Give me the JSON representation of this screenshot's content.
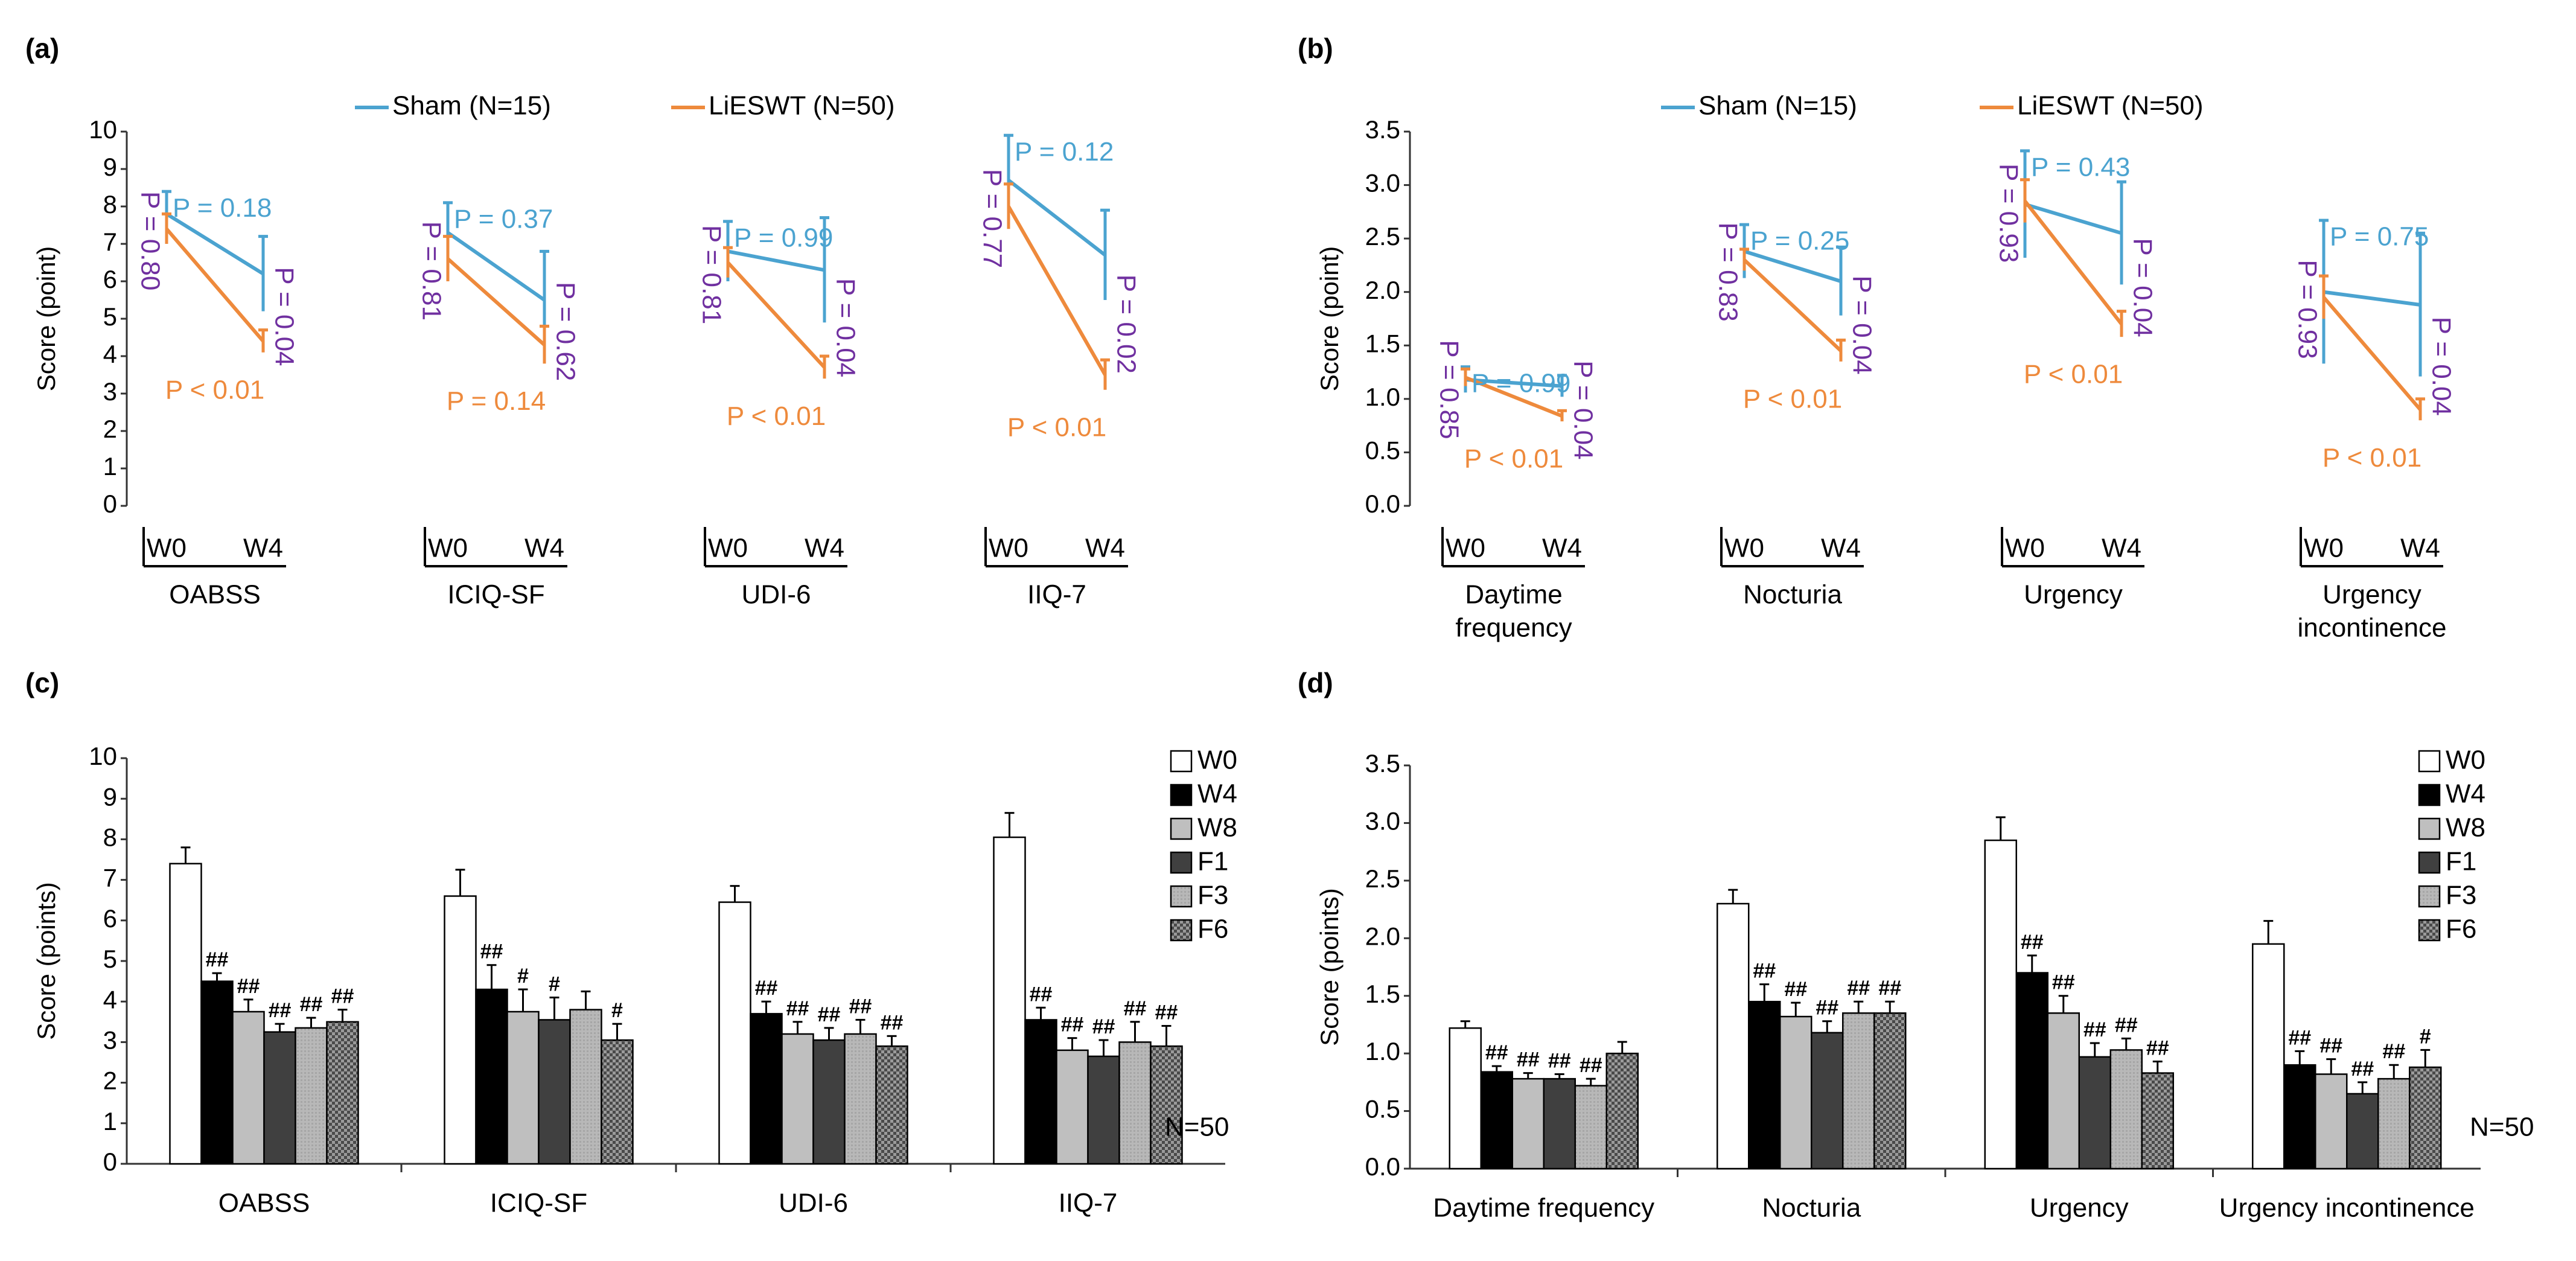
{
  "colors": {
    "sham": "#4BA3D0",
    "lieswt": "#EE8A3C",
    "pval": "#7030A0",
    "axis": "#333333",
    "grid": "#d9d9d9"
  },
  "legend_line": {
    "sham": "Sham (N=15)",
    "lieswt": "LiESWT (N=50)"
  },
  "legend_bar": [
    "W0",
    "W4",
    "W8",
    "F1",
    "F3",
    "F6"
  ],
  "n_label": "N=50",
  "chart_data": [
    {
      "panel": "(a)",
      "type": "line",
      "ylabel": "Score (point)",
      "ylim": [
        0,
        10
      ],
      "yticks": [
        "0",
        "1",
        "2",
        "3",
        "4",
        "5",
        "6",
        "7",
        "8",
        "9",
        "10"
      ],
      "time_labels": [
        "W0",
        "W4"
      ],
      "groups": [
        {
          "name": "OABSS",
          "sham": [
            7.8,
            6.2
          ],
          "sham_err": [
            0.6,
            1.0
          ],
          "lieswt": [
            7.4,
            4.4
          ],
          "lieswt_err": [
            0.4,
            0.3
          ],
          "p_sham": "P = 0.18",
          "p_lieswt": "P < 0.01",
          "p_w0": "P = 0.80",
          "p_w4": "P = 0.04"
        },
        {
          "name": "ICIQ-SF",
          "sham": [
            7.3,
            5.5
          ],
          "sham_err": [
            0.8,
            1.3
          ],
          "lieswt": [
            6.6,
            4.3
          ],
          "lieswt_err": [
            0.6,
            0.5
          ],
          "p_sham": "P = 0.37",
          "p_lieswt": "P = 0.14",
          "p_w0": "P = 0.81",
          "p_w4": "P = 0.62"
        },
        {
          "name": "UDI-6",
          "sham": [
            6.8,
            6.3
          ],
          "sham_err": [
            0.8,
            1.4
          ],
          "lieswt": [
            6.5,
            3.7
          ],
          "lieswt_err": [
            0.4,
            0.3
          ],
          "p_sham": "P = 0.99",
          "p_lieswt": "P < 0.01",
          "p_w0": "P = 0.81",
          "p_w4": "P = 0.04"
        },
        {
          "name": "IIQ-7",
          "sham": [
            8.7,
            6.7
          ],
          "sham_err": [
            1.2,
            1.2
          ],
          "lieswt": [
            8.0,
            3.5
          ],
          "lieswt_err": [
            0.6,
            0.4
          ],
          "p_sham": "P = 0.12",
          "p_lieswt": "P < 0.01",
          "p_w0": "P = 0.77",
          "p_w4": "P = 0.02"
        }
      ]
    },
    {
      "panel": "(b)",
      "type": "line",
      "ylabel": "Score (point)",
      "ylim": [
        0,
        3.5
      ],
      "yticks": [
        "0.0",
        "0.5",
        "1.0",
        "1.5",
        "2.0",
        "2.5",
        "3.0",
        "3.5"
      ],
      "time_labels": [
        "W0",
        "W4"
      ],
      "groups": [
        {
          "name": "Daytime frequency",
          "sham": [
            1.18,
            1.12
          ],
          "sham_err": [
            0.12,
            0.1
          ],
          "lieswt": [
            1.2,
            0.84
          ],
          "lieswt_err": [
            0.08,
            0.05
          ],
          "p_sham": "P = 0.99",
          "p_lieswt": "P < 0.01",
          "p_w0": "P = 0.85",
          "p_w4": "P = 0.04"
        },
        {
          "name": "Nocturia",
          "sham": [
            2.38,
            2.1
          ],
          "sham_err": [
            0.25,
            0.32
          ],
          "lieswt": [
            2.3,
            1.45
          ],
          "lieswt_err": [
            0.1,
            0.1
          ],
          "p_sham": "P = 0.25",
          "p_lieswt": "P < 0.01",
          "p_w0": "P = 0.83",
          "p_w4": "P = 0.04"
        },
        {
          "name": "Urgency",
          "sham": [
            2.82,
            2.55
          ],
          "sham_err": [
            0.5,
            0.48
          ],
          "lieswt": [
            2.85,
            1.7
          ],
          "lieswt_err": [
            0.2,
            0.12
          ],
          "p_sham": "P = 0.43",
          "p_lieswt": "P < 0.01",
          "p_w0": "P = 0.93",
          "p_w4": "P = 0.04"
        },
        {
          "name": "Urgency incontinence",
          "sham": [
            2.0,
            1.88
          ],
          "sham_err": [
            0.67,
            0.67
          ],
          "lieswt": [
            1.95,
            0.9
          ],
          "lieswt_err": [
            0.2,
            0.1
          ],
          "p_sham": "P = 0.75",
          "p_lieswt": "P < 0.01",
          "p_w0": "P = 0.93",
          "p_w4": "P = 0.04"
        }
      ]
    },
    {
      "panel": "(c)",
      "type": "bar",
      "ylabel": "Score (points)",
      "ylim": [
        0,
        10
      ],
      "yticks": [
        "0",
        "1",
        "2",
        "3",
        "4",
        "5",
        "6",
        "7",
        "8",
        "9",
        "10"
      ],
      "series_names": [
        "W0",
        "W4",
        "W8",
        "F1",
        "F3",
        "F6"
      ],
      "groups": [
        {
          "name": "OABSS",
          "values": [
            7.4,
            4.5,
            3.75,
            3.25,
            3.35,
            3.5
          ],
          "err": [
            0.4,
            0.2,
            0.3,
            0.2,
            0.25,
            0.3
          ],
          "marks": [
            "",
            "##",
            "##",
            "##",
            "##",
            "##"
          ]
        },
        {
          "name": "ICIQ-SF",
          "values": [
            6.6,
            4.3,
            3.75,
            3.55,
            3.8,
            3.05
          ],
          "err": [
            0.65,
            0.6,
            0.55,
            0.55,
            0.45,
            0.4
          ],
          "marks": [
            "",
            "##",
            "#",
            "#",
            "",
            "#"
          ]
        },
        {
          "name": "UDI-6",
          "values": [
            6.45,
            3.7,
            3.2,
            3.05,
            3.2,
            2.9
          ],
          "err": [
            0.4,
            0.3,
            0.3,
            0.3,
            0.35,
            0.25
          ],
          "marks": [
            "",
            "##",
            "##",
            "##",
            "##",
            "##"
          ]
        },
        {
          "name": "IIQ-7",
          "values": [
            8.05,
            3.55,
            2.8,
            2.65,
            3.0,
            2.9
          ],
          "err": [
            0.6,
            0.3,
            0.3,
            0.4,
            0.5,
            0.5
          ],
          "marks": [
            "",
            "##",
            "##",
            "##",
            "##",
            "##"
          ]
        }
      ]
    },
    {
      "panel": "(d)",
      "type": "bar",
      "ylabel": "Score (points)",
      "ylim": [
        0,
        3.5
      ],
      "yticks": [
        "0.0",
        "0.5",
        "1.0",
        "1.5",
        "2.0",
        "2.5",
        "3.0",
        "3.5"
      ],
      "series_names": [
        "W0",
        "W4",
        "W8",
        "F1",
        "F3",
        "F6"
      ],
      "groups": [
        {
          "name": "Daytime frequency",
          "values": [
            1.22,
            0.84,
            0.78,
            0.78,
            0.72,
            1.0
          ],
          "err": [
            0.06,
            0.05,
            0.05,
            0.04,
            0.06,
            0.1
          ],
          "marks": [
            "",
            "##",
            "##",
            "##",
            "##",
            ""
          ]
        },
        {
          "name": "Nocturia",
          "values": [
            2.3,
            1.45,
            1.32,
            1.18,
            1.35,
            1.35
          ],
          "err": [
            0.12,
            0.15,
            0.12,
            0.1,
            0.1,
            0.1
          ],
          "marks": [
            "",
            "##",
            "##",
            "##",
            "##",
            "##"
          ]
        },
        {
          "name": "Urgency",
          "values": [
            2.85,
            1.7,
            1.35,
            0.97,
            1.03,
            0.83
          ],
          "err": [
            0.2,
            0.15,
            0.15,
            0.12,
            0.1,
            0.1
          ],
          "marks": [
            "",
            "##",
            "##",
            "##",
            "##",
            "##"
          ]
        },
        {
          "name": "Urgency incontinence",
          "values": [
            1.95,
            0.9,
            0.82,
            0.65,
            0.78,
            0.88
          ],
          "err": [
            0.2,
            0.12,
            0.13,
            0.1,
            0.12,
            0.15
          ],
          "marks": [
            "",
            "##",
            "##",
            "##",
            "##",
            "#"
          ]
        }
      ]
    }
  ]
}
